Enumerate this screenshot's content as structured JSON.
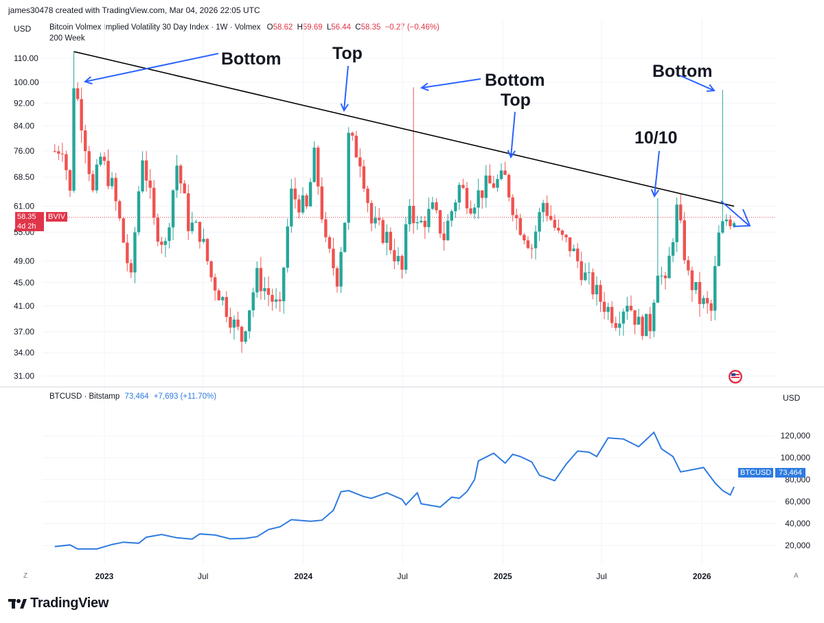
{
  "header": {
    "created_by": "james30478 created with TradingView.com, Mar 04, 2026 22:05 UTC",
    "currency": "USD",
    "symbol_desc": "Bitcoin Volmex Implied Volatility 30 Day Index · 1W · Volmex",
    "o_label": "O",
    "o_value": "58.62",
    "h_label": "H",
    "h_value": "59.69",
    "l_label": "L",
    "l_value": "56.44",
    "c_label": "C",
    "c_value": "58.35",
    "change": "−0.27 (−0.46%)",
    "indicator": "200 Week"
  },
  "bviv_price_tag": {
    "value": "58.35",
    "symbol": "BVIV",
    "countdown": "4d 2h"
  },
  "btc_header": {
    "symbol": "BTCUSD · Bitstamp",
    "value": "73,464",
    "change": "+7,693 (+11.70%)",
    "currency": "USD"
  },
  "btc_price_tag": {
    "symbol": "BTCUSD",
    "value": "73,464"
  },
  "bottom_bar": {
    "z_label": "Z",
    "a_label": "A"
  },
  "brand": "TradingView",
  "annotations": [
    "Bottom",
    "Top",
    "Bottom",
    "Top",
    "10/10",
    "Bottom"
  ],
  "colors": {
    "up": "#26a69a",
    "down": "#ef5350",
    "btc_line": "#2e7be0",
    "annot": "#2962ff",
    "trend": "#000000"
  },
  "chart_data": [
    {
      "type": "candlestick",
      "title": "Bitcoin Volmex Implied Volatility 30 Day Index · 1W · Volmex",
      "ylim": [
        31,
        116
      ],
      "y_ticks": [
        "110.00",
        "100.00",
        "92.00",
        "84.00",
        "76.00",
        "68.50",
        "61.00",
        "55.00",
        "49.00",
        "45.00",
        "41.00",
        "37.00",
        "34.00",
        "31.00"
      ],
      "x_ticks": [
        "2023",
        "Jul",
        "2024",
        "Jul",
        "2025",
        "Jul",
        "2026"
      ],
      "series": [
        {
          "name": "BVIV",
          "close_path": [
            [
              "2022-10-02",
              76
            ],
            [
              "2022-10-16",
              78
            ],
            [
              "2022-10-30",
              64
            ],
            [
              "2022-11-06",
              100
            ],
            [
              "2022-11-20",
              86
            ],
            [
              "2022-12-11",
              64
            ],
            [
              "2022-12-25",
              74
            ],
            [
              "2023-01-15",
              66
            ],
            [
              "2023-02-05",
              53
            ],
            [
              "2023-02-19",
              45
            ],
            [
              "2023-03-12",
              75
            ],
            [
              "2023-04-02",
              57
            ],
            [
              "2023-04-23",
              52
            ],
            [
              "2023-05-14",
              72
            ],
            [
              "2023-06-04",
              57
            ],
            [
              "2023-06-25",
              55
            ],
            [
              "2023-07-16",
              46
            ],
            [
              "2023-08-06",
              42
            ],
            [
              "2023-08-27",
              38
            ],
            [
              "2023-09-10",
              36
            ],
            [
              "2023-10-08",
              46
            ],
            [
              "2023-10-29",
              43
            ],
            [
              "2023-11-19",
              40
            ],
            [
              "2023-12-10",
              64
            ],
            [
              "2024-01-07",
              60
            ],
            [
              "2024-01-21",
              74
            ],
            [
              "2024-02-11",
              52
            ],
            [
              "2024-03-03",
              46
            ],
            [
              "2024-03-17",
              58
            ],
            [
              "2024-03-24",
              80
            ],
            [
              "2024-04-14",
              74
            ],
            [
              "2024-05-05",
              57
            ],
            [
              "2024-06-02",
              54
            ],
            [
              "2024-06-30",
              47
            ],
            [
              "2024-07-14",
              62
            ],
            [
              "2024-07-28",
              56
            ],
            [
              "2024-08-25",
              60
            ],
            [
              "2024-09-15",
              54
            ],
            [
              "2024-10-13",
              66
            ],
            [
              "2024-11-03",
              62
            ],
            [
              "2024-12-01",
              66
            ],
            [
              "2025-01-05",
              68
            ],
            [
              "2025-01-26",
              58
            ],
            [
              "2025-02-23",
              52
            ],
            [
              "2025-03-16",
              62
            ],
            [
              "2025-04-13",
              54
            ],
            [
              "2025-05-04",
              52
            ],
            [
              "2025-06-01",
              46
            ],
            [
              "2025-06-29",
              42
            ],
            [
              "2025-07-27",
              39
            ],
            [
              "2025-08-17",
              42
            ],
            [
              "2025-09-07",
              38
            ],
            [
              "2025-09-28",
              38
            ],
            [
              "2025-10-12",
              48
            ],
            [
              "2025-10-26",
              44
            ],
            [
              "2025-11-16",
              60
            ],
            [
              "2025-12-07",
              46
            ],
            [
              "2025-12-28",
              42
            ],
            [
              "2026-01-18",
              40
            ],
            [
              "2026-02-01",
              54
            ],
            [
              "2026-02-15",
              58
            ],
            [
              "2026-03-01",
              58.35
            ]
          ]
        },
        {
          "name": "200 Week",
          "type": "trendline",
          "points": [
            [
              "2022-11-06",
              113
            ],
            [
              "2026-03-01",
              61
            ]
          ]
        }
      ],
      "annotations": [
        {
          "text": "Bottom",
          "date": "2022-11-06",
          "value": 113
        },
        {
          "text": "Top",
          "date": "2024-03-31",
          "value": 88
        },
        {
          "text": "Bottom",
          "date": "2024-07-21",
          "value": 98
        },
        {
          "text": "Top",
          "date": "2025-01-12",
          "value": 73
        },
        {
          "text": "10/10",
          "date": "2025-10-12",
          "value": 63
        },
        {
          "text": "Bottom",
          "date": "2026-02-08",
          "value": 97
        }
      ]
    },
    {
      "type": "line",
      "title": "BTCUSD · Bitstamp",
      "ylim": [
        0,
        130000
      ],
      "y_ticks": [
        "120,000",
        "100,000",
        "80,000",
        "60,000",
        "40,000",
        "20,000"
      ],
      "x_ticks": [
        "2023",
        "Jul",
        "2024",
        "Jul",
        "2025",
        "Jul",
        "2026"
      ],
      "series": [
        {
          "name": "BTCUSD",
          "values": [
            [
              "2022-10-02",
              19000
            ],
            [
              "2022-10-30",
              20500
            ],
            [
              "2022-11-13",
              16800
            ],
            [
              "2022-12-18",
              16800
            ],
            [
              "2023-01-15",
              20900
            ],
            [
              "2023-02-05",
              23000
            ],
            [
              "2023-03-05",
              22000
            ],
            [
              "2023-03-19",
              27500
            ],
            [
              "2023-04-16",
              30000
            ],
            [
              "2023-05-14",
              27000
            ],
            [
              "2023-06-11",
              25800
            ],
            [
              "2023-06-25",
              30500
            ],
            [
              "2023-07-23",
              29500
            ],
            [
              "2023-08-20",
              26000
            ],
            [
              "2023-09-17",
              26500
            ],
            [
              "2023-10-08",
              28000
            ],
            [
              "2023-10-29",
              34500
            ],
            [
              "2023-11-19",
              37000
            ],
            [
              "2023-12-10",
              43500
            ],
            [
              "2024-01-14",
              42000
            ],
            [
              "2024-02-04",
              43000
            ],
            [
              "2024-02-25",
              52000
            ],
            [
              "2024-03-10",
              69000
            ],
            [
              "2024-03-24",
              70000
            ],
            [
              "2024-04-21",
              64500
            ],
            [
              "2024-05-05",
              63000
            ],
            [
              "2024-06-02",
              68000
            ],
            [
              "2024-06-30",
              62000
            ],
            [
              "2024-07-07",
              57000
            ],
            [
              "2024-07-28",
              68000
            ],
            [
              "2024-08-04",
              58000
            ],
            [
              "2024-09-08",
              55000
            ],
            [
              "2024-09-29",
              64000
            ],
            [
              "2024-10-13",
              63000
            ],
            [
              "2024-10-27",
              69000
            ],
            [
              "2024-11-10",
              80000
            ],
            [
              "2024-11-17",
              97000
            ],
            [
              "2024-12-15",
              104000
            ],
            [
              "2025-01-05",
              95000
            ],
            [
              "2025-01-19",
              103000
            ],
            [
              "2025-02-02",
              101000
            ],
            [
              "2025-02-23",
              96000
            ],
            [
              "2025-03-09",
              84000
            ],
            [
              "2025-04-06",
              79000
            ],
            [
              "2025-04-27",
              94000
            ],
            [
              "2025-05-18",
              106000
            ],
            [
              "2025-06-08",
              105000
            ],
            [
              "2025-06-22",
              101000
            ],
            [
              "2025-07-13",
              118000
            ],
            [
              "2025-08-10",
              117000
            ],
            [
              "2025-09-07",
              110000
            ],
            [
              "2025-10-05",
              123000
            ],
            [
              "2025-10-19",
              108000
            ],
            [
              "2025-11-09",
              101000
            ],
            [
              "2025-11-23",
              87000
            ],
            [
              "2025-12-14",
              89000
            ],
            [
              "2026-01-04",
              91000
            ],
            [
              "2026-01-25",
              77000
            ],
            [
              "2026-02-08",
              70000
            ],
            [
              "2026-02-22",
              66000
            ],
            [
              "2026-03-01",
              73464
            ]
          ]
        }
      ]
    }
  ]
}
